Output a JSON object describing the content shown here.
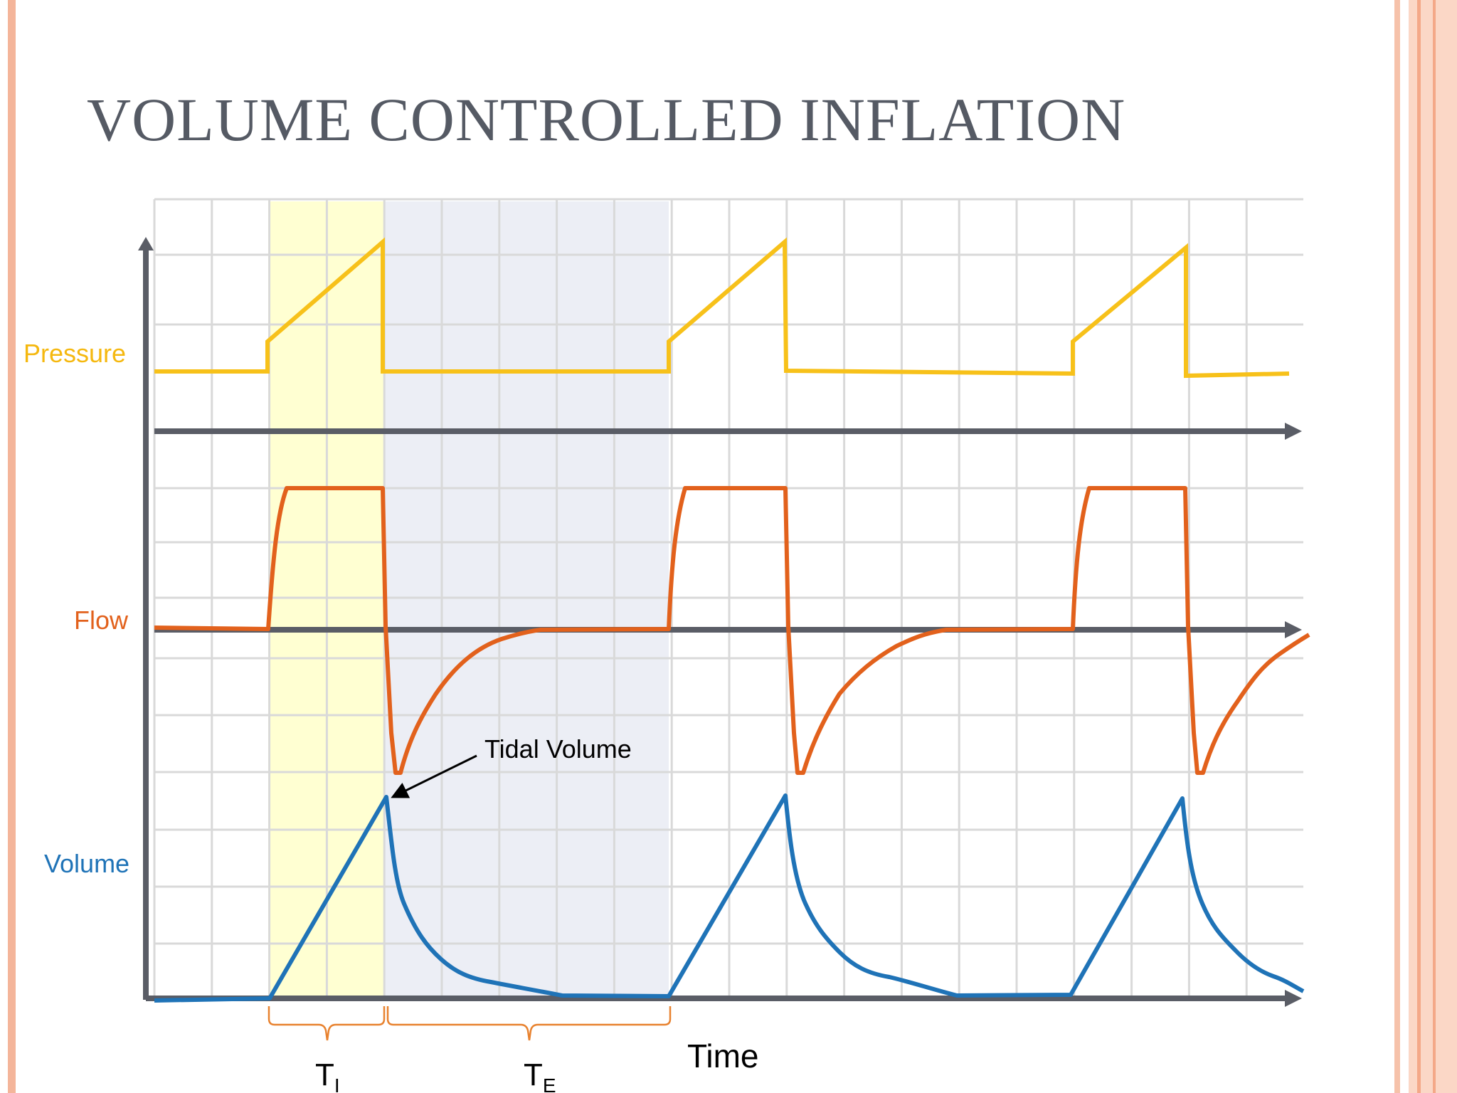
{
  "slide": {
    "title": "VOLUME CONTROLLED INFLATION",
    "border_colors": [
      "#f4b59a",
      "#fbd9c9"
    ]
  },
  "diagram": {
    "waveform_labels": {
      "pressure": "Pressure",
      "flow": "Flow",
      "volume": "Volume"
    },
    "annotation": "Tidal Volume",
    "time_label": "Time",
    "inspiratory_time": {
      "main": "T",
      "sub": "I"
    },
    "expiratory_time": {
      "main": "T",
      "sub": "E"
    },
    "colors": {
      "pressure": "#f7c11a",
      "flow": "#e2611c",
      "volume": "#1f73b7",
      "axis": "#5a5d66",
      "grid": "#d9d9d9",
      "inspiration_shade": "#ffffd2",
      "expiration_shade": "#eceef5",
      "brace": "#e8822f"
    }
  }
}
